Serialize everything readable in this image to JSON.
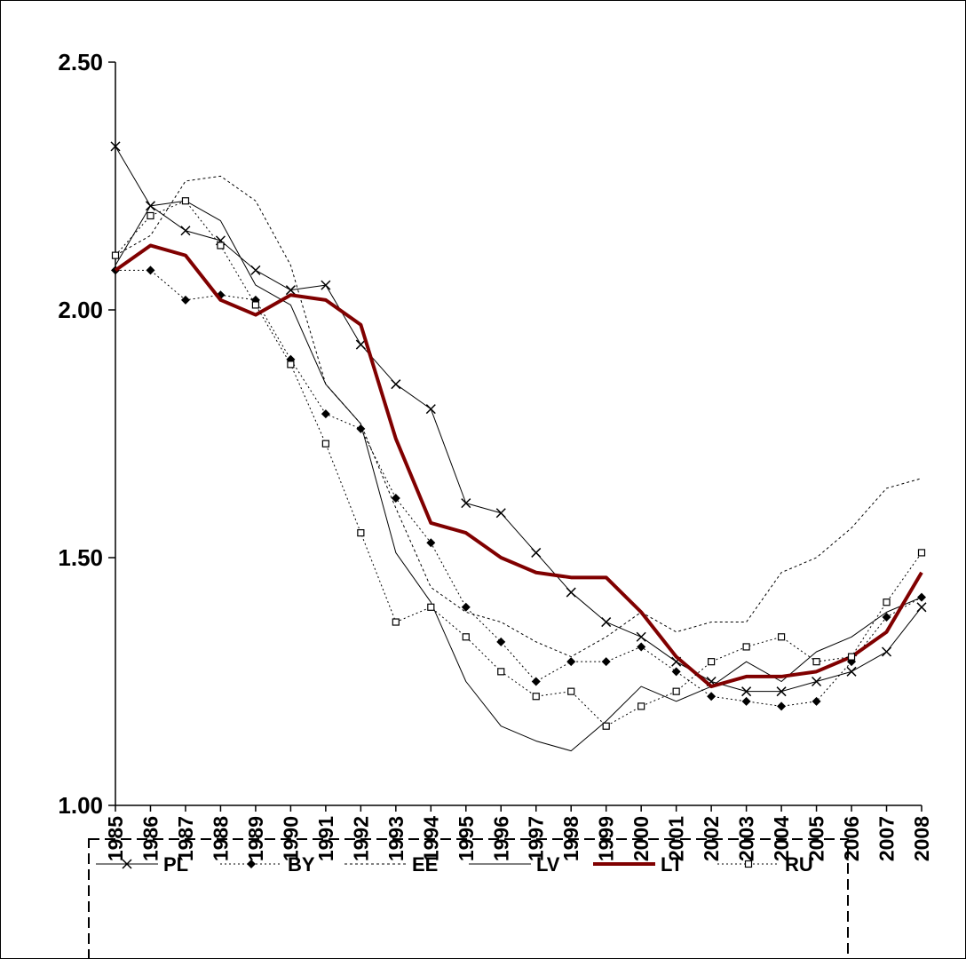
{
  "chart_data": {
    "type": "line",
    "categories": [
      "1985",
      "1986",
      "1987",
      "1988",
      "1989",
      "1990",
      "1991",
      "1992",
      "1993",
      "1994",
      "1995",
      "1996",
      "1997",
      "1998",
      "1999",
      "2000",
      "2001",
      "2002",
      "2003",
      "2004",
      "2005",
      "2006",
      "2007",
      "2008"
    ],
    "ylim": [
      1.0,
      2.5
    ],
    "yticks": [
      {
        "value": 1.0,
        "label": "1.00"
      },
      {
        "value": 1.5,
        "label": "1.50"
      },
      {
        "value": 2.0,
        "label": "2.00"
      },
      {
        "value": 2.5,
        "label": "2.50"
      }
    ],
    "legend": "bottom",
    "series": [
      {
        "name": "PL",
        "color": "#000000",
        "width": 1,
        "dash": "none",
        "marker": "x",
        "values": [
          2.33,
          2.21,
          2.16,
          2.14,
          2.08,
          2.04,
          2.05,
          1.93,
          1.85,
          1.8,
          1.61,
          1.59,
          1.51,
          1.43,
          1.37,
          1.34,
          1.29,
          1.25,
          1.23,
          1.23,
          1.25,
          1.27,
          1.31,
          1.4
        ]
      },
      {
        "name": "BY",
        "color": "#000000",
        "width": 1,
        "dash": "2,3",
        "marker": "diamond",
        "values": [
          2.08,
          2.08,
          2.02,
          2.03,
          2.02,
          1.9,
          1.79,
          1.76,
          1.62,
          1.53,
          1.4,
          1.33,
          1.25,
          1.29,
          1.29,
          1.32,
          1.27,
          1.22,
          1.21,
          1.2,
          1.21,
          1.29,
          1.38,
          1.42
        ]
      },
      {
        "name": "EE",
        "color": "#000000",
        "width": 1,
        "dash": "3,3",
        "marker": "none",
        "values": [
          2.11,
          2.15,
          2.26,
          2.27,
          2.22,
          2.09,
          1.85,
          1.77,
          1.6,
          1.44,
          1.39,
          1.37,
          1.33,
          1.3,
          1.34,
          1.39,
          1.35,
          1.37,
          1.37,
          1.47,
          1.5,
          1.56,
          1.64,
          1.66
        ]
      },
      {
        "name": "LV",
        "color": "#000000",
        "width": 1,
        "dash": "none",
        "marker": "none",
        "values": [
          2.09,
          2.21,
          2.22,
          2.18,
          2.05,
          2.01,
          1.85,
          1.77,
          1.51,
          1.41,
          1.25,
          1.16,
          1.13,
          1.11,
          1.17,
          1.24,
          1.21,
          1.24,
          1.29,
          1.25,
          1.31,
          1.34,
          1.39,
          1.42
        ]
      },
      {
        "name": "LT",
        "color": "#800000",
        "width": 4,
        "dash": "none",
        "marker": "none",
        "values": [
          2.08,
          2.13,
          2.11,
          2.02,
          1.99,
          2.03,
          2.02,
          1.97,
          1.74,
          1.57,
          1.55,
          1.5,
          1.47,
          1.46,
          1.46,
          1.39,
          1.3,
          1.24,
          1.26,
          1.26,
          1.27,
          1.3,
          1.35,
          1.47
        ]
      },
      {
        "name": "RU",
        "color": "#000000",
        "width": 1,
        "dash": "2,3",
        "marker": "square",
        "values": [
          2.11,
          2.19,
          2.22,
          2.13,
          2.01,
          1.89,
          1.73,
          1.55,
          1.37,
          1.4,
          1.34,
          1.27,
          1.22,
          1.23,
          1.16,
          1.2,
          1.23,
          1.29,
          1.32,
          1.34,
          1.29,
          1.3,
          1.41,
          1.51
        ]
      }
    ]
  }
}
